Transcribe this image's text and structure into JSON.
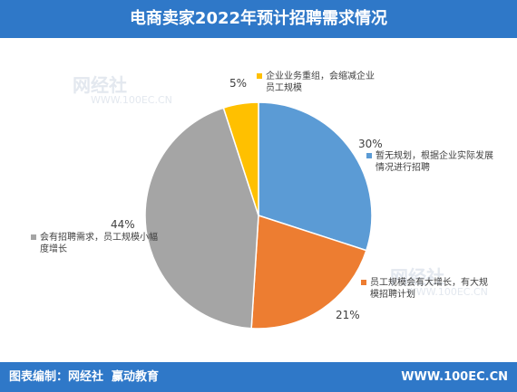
{
  "chart_data": {
    "type": "pie",
    "title": "电商卖家2022年预计招聘需求情况",
    "categories": [
      "暂无规划，根据企业实际发展情况进行招聘",
      "员工规模会有大增长，有大规模招聘计划",
      "会有招聘需求，员工规模小幅度增长",
      "企业业务重组，会缩减企业员工规模"
    ],
    "values": [
      30,
      21,
      44,
      5
    ],
    "value_labels": [
      "30%",
      "21%",
      "44%",
      "5%"
    ],
    "colors": [
      "#5b9bd5",
      "#ed7d31",
      "#a5a5a5",
      "#ffc000"
    ]
  },
  "watermark": [
    "网经社",
    "WWW.100EC.CN"
  ],
  "footer": {
    "source": "图表编制：网经社  赢动教育",
    "website": "WWW.100EC.CN"
  }
}
